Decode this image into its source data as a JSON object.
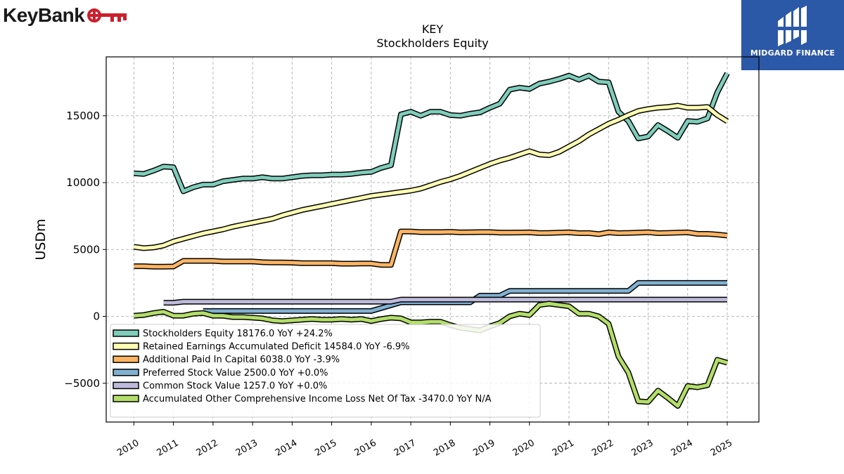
{
  "brand": {
    "left_name": "KeyBank",
    "left_color": "#cc1f2c",
    "right_name": "MIDGARD FINANCE",
    "right_color": "#2c58a8"
  },
  "chart_data": {
    "type": "line",
    "title": "KEY",
    "subtitle": "Stockholders  Equity",
    "ylabel": "USDm",
    "xlabel": "",
    "xlim": [
      2009.3,
      2025.8
    ],
    "ylim": [
      -7900,
      19400
    ],
    "yticks": [
      -5000,
      0,
      5000,
      10000,
      15000
    ],
    "xticks": [
      2010,
      2011,
      2012,
      2013,
      2014,
      2015,
      2016,
      2017,
      2018,
      2019,
      2020,
      2021,
      2022,
      2023,
      2024,
      2025
    ],
    "grid": true,
    "legend_position": "lower-left",
    "series": [
      {
        "name": "Stockholders Equity",
        "legend": "Stockholders Equity  18176.0 YoY +24.2%",
        "color": "#7fcdbb",
        "points": [
          [
            2010.0,
            10700
          ],
          [
            2010.25,
            10650
          ],
          [
            2010.5,
            10900
          ],
          [
            2010.75,
            11200
          ],
          [
            2011.0,
            11150
          ],
          [
            2011.25,
            9350
          ],
          [
            2011.5,
            9650
          ],
          [
            2011.75,
            9850
          ],
          [
            2012.0,
            9850
          ],
          [
            2012.25,
            10100
          ],
          [
            2012.5,
            10200
          ],
          [
            2012.75,
            10300
          ],
          [
            2013.0,
            10300
          ],
          [
            2013.25,
            10400
          ],
          [
            2013.5,
            10300
          ],
          [
            2013.75,
            10300
          ],
          [
            2014.0,
            10400
          ],
          [
            2014.25,
            10500
          ],
          [
            2014.5,
            10550
          ],
          [
            2014.75,
            10550
          ],
          [
            2015.0,
            10600
          ],
          [
            2015.25,
            10600
          ],
          [
            2015.5,
            10650
          ],
          [
            2015.75,
            10750
          ],
          [
            2016.0,
            10800
          ],
          [
            2016.25,
            11100
          ],
          [
            2016.5,
            11300
          ],
          [
            2016.75,
            15100
          ],
          [
            2017.0,
            15300
          ],
          [
            2017.25,
            15000
          ],
          [
            2017.5,
            15300
          ],
          [
            2017.75,
            15300
          ],
          [
            2018.0,
            15050
          ],
          [
            2018.25,
            15000
          ],
          [
            2018.5,
            15150
          ],
          [
            2018.75,
            15250
          ],
          [
            2019.0,
            15600
          ],
          [
            2019.25,
            15900
          ],
          [
            2019.5,
            16950
          ],
          [
            2019.75,
            17100
          ],
          [
            2020.0,
            17000
          ],
          [
            2020.25,
            17400
          ],
          [
            2020.5,
            17550
          ],
          [
            2020.75,
            17750
          ],
          [
            2021.0,
            18000
          ],
          [
            2021.25,
            17700
          ],
          [
            2021.5,
            18000
          ],
          [
            2021.75,
            17550
          ],
          [
            2022.0,
            17500
          ],
          [
            2022.25,
            15300
          ],
          [
            2022.5,
            14600
          ],
          [
            2022.75,
            13300
          ],
          [
            2023.0,
            13450
          ],
          [
            2023.25,
            14300
          ],
          [
            2023.5,
            13850
          ],
          [
            2023.75,
            13350
          ],
          [
            2024.0,
            14600
          ],
          [
            2024.25,
            14550
          ],
          [
            2024.5,
            14800
          ],
          [
            2024.75,
            16750
          ],
          [
            2025.0,
            18176
          ]
        ]
      },
      {
        "name": "Retained Earnings Accumulated Deficit",
        "legend": "Retained Earnings Accumulated Deficit  14584.0 YoY -6.9%",
        "color": "#ffffb3",
        "points": [
          [
            2010.0,
            5200
          ],
          [
            2010.25,
            5100
          ],
          [
            2010.5,
            5150
          ],
          [
            2010.75,
            5300
          ],
          [
            2011.0,
            5600
          ],
          [
            2011.25,
            5800
          ],
          [
            2011.5,
            6000
          ],
          [
            2011.75,
            6200
          ],
          [
            2012.0,
            6350
          ],
          [
            2012.25,
            6500
          ],
          [
            2012.5,
            6700
          ],
          [
            2012.75,
            6850
          ],
          [
            2013.0,
            7000
          ],
          [
            2013.25,
            7150
          ],
          [
            2013.5,
            7300
          ],
          [
            2013.75,
            7550
          ],
          [
            2014.0,
            7750
          ],
          [
            2014.25,
            7950
          ],
          [
            2014.5,
            8100
          ],
          [
            2014.75,
            8250
          ],
          [
            2015.0,
            8400
          ],
          [
            2015.25,
            8550
          ],
          [
            2015.5,
            8700
          ],
          [
            2015.75,
            8850
          ],
          [
            2016.0,
            9000
          ],
          [
            2016.25,
            9100
          ],
          [
            2016.5,
            9200
          ],
          [
            2016.75,
            9300
          ],
          [
            2017.0,
            9400
          ],
          [
            2017.25,
            9550
          ],
          [
            2017.5,
            9800
          ],
          [
            2017.75,
            10050
          ],
          [
            2018.0,
            10250
          ],
          [
            2018.25,
            10500
          ],
          [
            2018.5,
            10800
          ],
          [
            2018.75,
            11100
          ],
          [
            2019.0,
            11400
          ],
          [
            2019.25,
            11650
          ],
          [
            2019.5,
            11850
          ],
          [
            2019.75,
            12100
          ],
          [
            2020.0,
            12350
          ],
          [
            2020.25,
            12100
          ],
          [
            2020.5,
            12050
          ],
          [
            2020.75,
            12300
          ],
          [
            2021.0,
            12700
          ],
          [
            2021.25,
            13100
          ],
          [
            2021.5,
            13600
          ],
          [
            2021.75,
            14000
          ],
          [
            2022.0,
            14400
          ],
          [
            2022.25,
            14700
          ],
          [
            2022.5,
            15050
          ],
          [
            2022.75,
            15350
          ],
          [
            2023.0,
            15500
          ],
          [
            2023.25,
            15600
          ],
          [
            2023.5,
            15650
          ],
          [
            2023.75,
            15750
          ],
          [
            2024.0,
            15600
          ],
          [
            2024.25,
            15600
          ],
          [
            2024.5,
            15650
          ],
          [
            2024.75,
            15050
          ],
          [
            2025.0,
            14584
          ]
        ]
      },
      {
        "name": "Additional Paid In Capital",
        "legend": "Additional Paid In Capital  6038.0 YoY -3.9%",
        "color": "#fdb462",
        "points": [
          [
            2010.0,
            3750
          ],
          [
            2010.25,
            3750
          ],
          [
            2010.5,
            3720
          ],
          [
            2010.75,
            3720
          ],
          [
            2011.0,
            3730
          ],
          [
            2011.25,
            4150
          ],
          [
            2011.5,
            4150
          ],
          [
            2011.75,
            4150
          ],
          [
            2012.0,
            4150
          ],
          [
            2012.25,
            4100
          ],
          [
            2012.5,
            4100
          ],
          [
            2012.75,
            4100
          ],
          [
            2013.0,
            4100
          ],
          [
            2013.25,
            4050
          ],
          [
            2013.5,
            4030
          ],
          [
            2013.75,
            4030
          ],
          [
            2014.0,
            4020
          ],
          [
            2014.25,
            3980
          ],
          [
            2014.5,
            3980
          ],
          [
            2014.75,
            3980
          ],
          [
            2015.0,
            3980
          ],
          [
            2015.25,
            3940
          ],
          [
            2015.5,
            3940
          ],
          [
            2015.75,
            3950
          ],
          [
            2016.0,
            3950
          ],
          [
            2016.25,
            3850
          ],
          [
            2016.5,
            3850
          ],
          [
            2016.75,
            6350
          ],
          [
            2017.0,
            6350
          ],
          [
            2017.25,
            6300
          ],
          [
            2017.5,
            6300
          ],
          [
            2017.75,
            6300
          ],
          [
            2018.0,
            6320
          ],
          [
            2018.25,
            6280
          ],
          [
            2018.5,
            6290
          ],
          [
            2018.75,
            6300
          ],
          [
            2019.0,
            6300
          ],
          [
            2019.25,
            6260
          ],
          [
            2019.5,
            6260
          ],
          [
            2019.75,
            6270
          ],
          [
            2020.0,
            6280
          ],
          [
            2020.25,
            6230
          ],
          [
            2020.5,
            6240
          ],
          [
            2020.75,
            6260
          ],
          [
            2021.0,
            6280
          ],
          [
            2021.25,
            6220
          ],
          [
            2021.5,
            6230
          ],
          [
            2021.75,
            6150
          ],
          [
            2022.0,
            6280
          ],
          [
            2022.25,
            6220
          ],
          [
            2022.5,
            6240
          ],
          [
            2022.75,
            6260
          ],
          [
            2023.0,
            6290
          ],
          [
            2023.25,
            6220
          ],
          [
            2023.5,
            6240
          ],
          [
            2023.75,
            6260
          ],
          [
            2024.0,
            6280
          ],
          [
            2024.25,
            6170
          ],
          [
            2024.5,
            6170
          ],
          [
            2024.75,
            6120
          ],
          [
            2025.0,
            6038
          ]
        ]
      },
      {
        "name": "Preferred Stock Value",
        "legend": "Preferred Stock Value  2500.0 YoY +0.0%",
        "color": "#80b1d3",
        "points": [
          [
            2011.75,
            400
          ],
          [
            2012.0,
            400
          ],
          [
            2013.0,
            400
          ],
          [
            2014.0,
            400
          ],
          [
            2015.0,
            400
          ],
          [
            2016.0,
            400
          ],
          [
            2016.75,
            1050
          ],
          [
            2017.0,
            1050
          ],
          [
            2018.0,
            1050
          ],
          [
            2018.5,
            1050
          ],
          [
            2018.75,
            1550
          ],
          [
            2019.0,
            1550
          ],
          [
            2019.25,
            1550
          ],
          [
            2019.5,
            1900
          ],
          [
            2020.0,
            1900
          ],
          [
            2021.0,
            1900
          ],
          [
            2022.0,
            1900
          ],
          [
            2022.5,
            1900
          ],
          [
            2022.75,
            2500
          ],
          [
            2023.0,
            2500
          ],
          [
            2024.0,
            2500
          ],
          [
            2025.0,
            2500
          ]
        ]
      },
      {
        "name": "Common Stock Value",
        "legend": "Common Stock Value  1257.0 YoY +0.0%",
        "color": "#bebada",
        "points": [
          [
            2010.75,
            1020
          ],
          [
            2011.0,
            1020
          ],
          [
            2011.25,
            1100
          ],
          [
            2012.0,
            1100
          ],
          [
            2013.0,
            1100
          ],
          [
            2014.0,
            1100
          ],
          [
            2015.0,
            1100
          ],
          [
            2016.0,
            1100
          ],
          [
            2016.5,
            1100
          ],
          [
            2016.75,
            1257
          ],
          [
            2017.0,
            1257
          ],
          [
            2018.0,
            1257
          ],
          [
            2019.0,
            1257
          ],
          [
            2020.0,
            1257
          ],
          [
            2021.0,
            1257
          ],
          [
            2022.0,
            1257
          ],
          [
            2023.0,
            1257
          ],
          [
            2024.0,
            1257
          ],
          [
            2025.0,
            1257
          ]
        ]
      },
      {
        "name": "Accumulated Other Comprehensive Income Loss Net Of Tax",
        "legend": "Accumulated Other Comprehensive Income Loss Net Of Tax  -3470.0 YoY N/A",
        "color": "#b3de69",
        "points": [
          [
            2010.0,
            50
          ],
          [
            2010.25,
            100
          ],
          [
            2010.5,
            250
          ],
          [
            2010.75,
            350
          ],
          [
            2011.0,
            50
          ],
          [
            2011.25,
            50
          ],
          [
            2011.5,
            200
          ],
          [
            2011.75,
            250
          ],
          [
            2012.0,
            50
          ],
          [
            2012.25,
            50
          ],
          [
            2012.5,
            -50
          ],
          [
            2012.75,
            -50
          ],
          [
            2013.0,
            -100
          ],
          [
            2013.25,
            -150
          ],
          [
            2013.5,
            -300
          ],
          [
            2013.75,
            -350
          ],
          [
            2014.0,
            -300
          ],
          [
            2014.25,
            -250
          ],
          [
            2014.5,
            -200
          ],
          [
            2014.75,
            -250
          ],
          [
            2015.0,
            -250
          ],
          [
            2015.25,
            -200
          ],
          [
            2015.5,
            -250
          ],
          [
            2015.75,
            -200
          ],
          [
            2016.0,
            -350
          ],
          [
            2016.25,
            -200
          ],
          [
            2016.5,
            -100
          ],
          [
            2016.75,
            -150
          ],
          [
            2017.0,
            -450
          ],
          [
            2017.25,
            -450
          ],
          [
            2017.5,
            -400
          ],
          [
            2017.75,
            -400
          ],
          [
            2018.0,
            -650
          ],
          [
            2018.25,
            -850
          ],
          [
            2018.5,
            -950
          ],
          [
            2018.75,
            -1050
          ],
          [
            2019.0,
            -750
          ],
          [
            2019.25,
            -500
          ],
          [
            2019.5,
            0
          ],
          [
            2019.75,
            200
          ],
          [
            2020.0,
            100
          ],
          [
            2020.25,
            850
          ],
          [
            2020.5,
            950
          ],
          [
            2020.75,
            850
          ],
          [
            2021.0,
            750
          ],
          [
            2021.25,
            200
          ],
          [
            2021.5,
            200
          ],
          [
            2021.75,
            0
          ],
          [
            2022.0,
            -550
          ],
          [
            2022.25,
            -3000
          ],
          [
            2022.5,
            -4200
          ],
          [
            2022.75,
            -6350
          ],
          [
            2023.0,
            -6400
          ],
          [
            2023.25,
            -5550
          ],
          [
            2023.5,
            -6100
          ],
          [
            2023.75,
            -6700
          ],
          [
            2024.0,
            -5200
          ],
          [
            2024.25,
            -5300
          ],
          [
            2024.5,
            -5150
          ],
          [
            2024.75,
            -3250
          ],
          [
            2025.0,
            -3470
          ]
        ]
      }
    ]
  }
}
